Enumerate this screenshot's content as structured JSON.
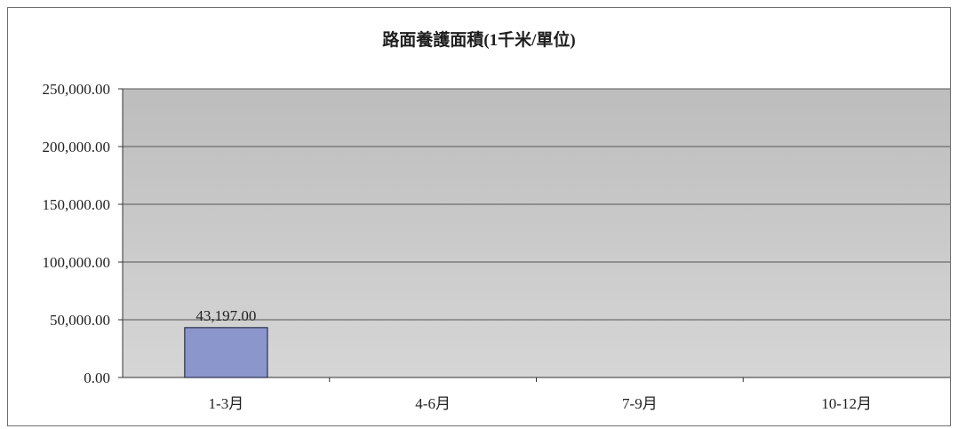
{
  "colors": {
    "plot_background": "#c9c9c9",
    "bar_fill": "#8b96cc",
    "bar_stroke": "#2b2f4a",
    "gridline": "#555555",
    "axis": "#333333"
  },
  "chart_data": {
    "type": "bar",
    "title": "路面養護面積(1千米/單位)",
    "xlabel": "",
    "ylabel": "",
    "categories": [
      "1-3月",
      "4-6月",
      "7-9月",
      "10-12月"
    ],
    "values": [
      43197.0,
      0,
      0,
      0
    ],
    "data_labels": [
      "43,197.00",
      "",
      "",
      ""
    ],
    "ylim": [
      0,
      250000
    ],
    "yticks": [
      0,
      50000,
      100000,
      150000,
      200000,
      250000
    ],
    "ytick_labels": [
      "0.00",
      "50,000.00",
      "100,000.00",
      "150,000.00",
      "200,000.00",
      "250,000.00"
    ],
    "grid": true,
    "legend": "none"
  }
}
